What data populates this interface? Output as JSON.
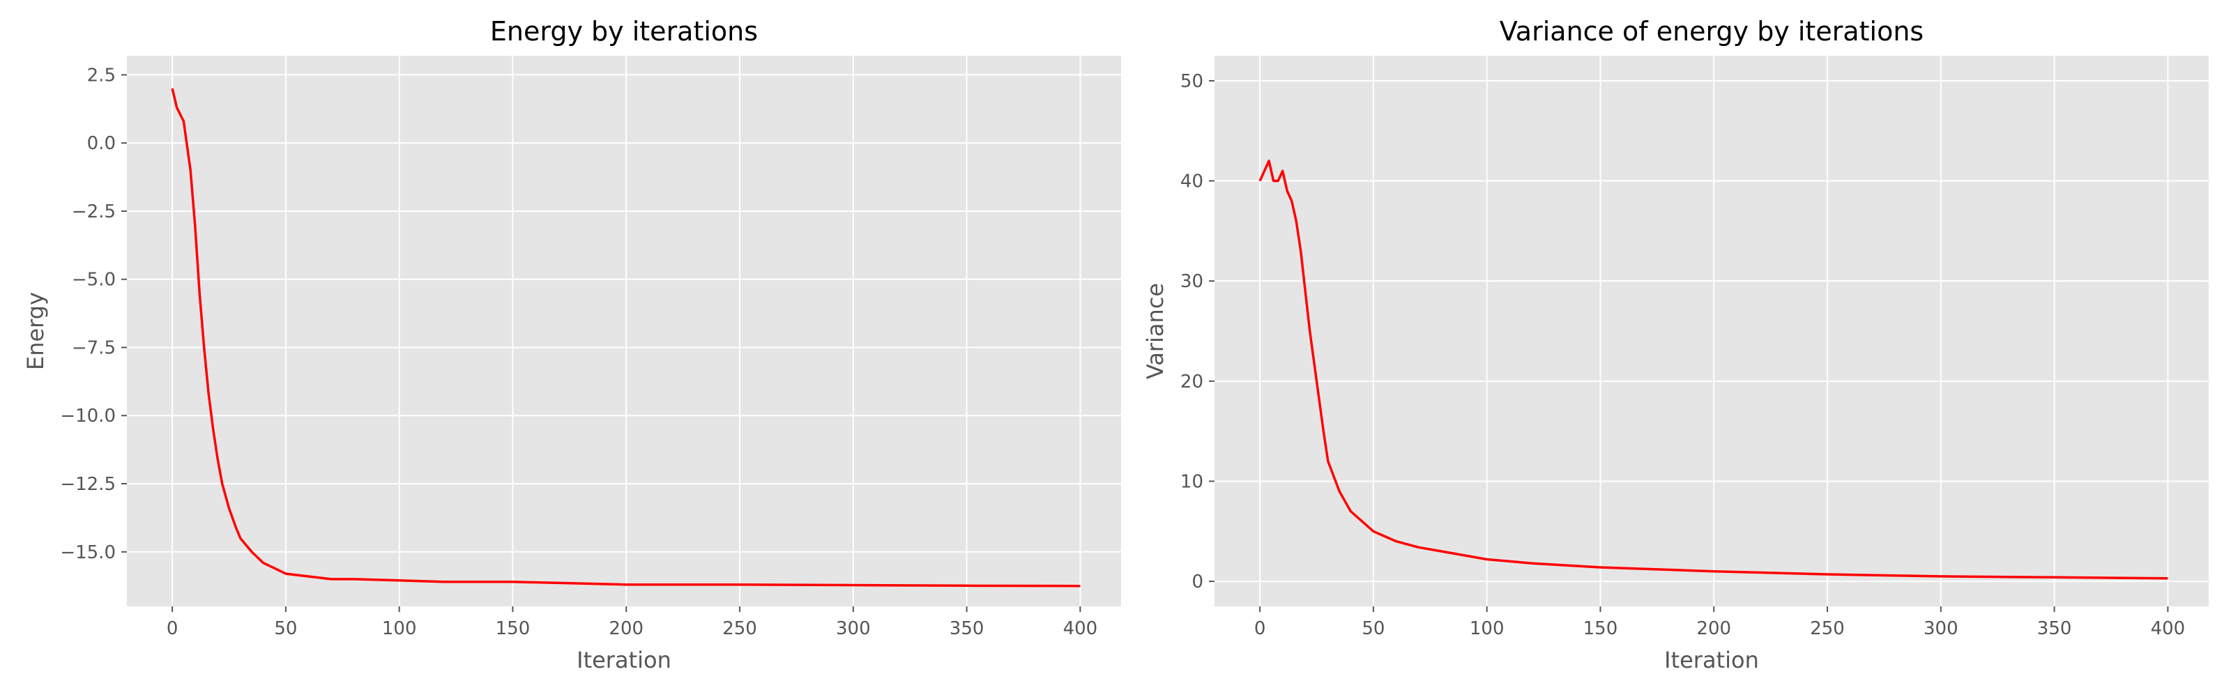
{
  "chart_data": [
    {
      "type": "line",
      "title": "Energy by iterations",
      "xlabel": "Iteration",
      "ylabel": "Energy",
      "xlim": [
        -20,
        418
      ],
      "ylim": [
        -17.0,
        3.2
      ],
      "xticks": [
        0,
        50,
        100,
        150,
        200,
        250,
        300,
        350,
        400
      ],
      "yticks": [
        2.5,
        0.0,
        -2.5,
        -5.0,
        -7.5,
        -10.0,
        -12.5,
        -15.0
      ],
      "ytick_labels": [
        "2.5",
        "0.0",
        "−2.5",
        "−5.0",
        "−7.5",
        "−10.0",
        "−12.5",
        "−15.0"
      ],
      "grid": true,
      "line_color": "#ff0000",
      "series": [
        {
          "x": [
            0,
            2,
            5,
            8,
            10,
            12,
            14,
            16,
            18,
            20,
            22,
            25,
            28,
            30,
            35,
            40,
            45,
            50,
            60,
            70,
            80,
            100,
            120,
            150,
            200,
            250,
            300,
            350,
            400
          ],
          "y": [
            2.0,
            1.3,
            0.8,
            -1.0,
            -3.0,
            -5.5,
            -7.5,
            -9.2,
            -10.5,
            -11.6,
            -12.5,
            -13.4,
            -14.1,
            -14.5,
            -15.0,
            -15.4,
            -15.6,
            -15.8,
            -15.9,
            -16.0,
            -16.0,
            -16.05,
            -16.1,
            -16.1,
            -16.2,
            -16.2,
            -16.22,
            -16.24,
            -16.25
          ]
        }
      ]
    },
    {
      "type": "line",
      "title": "Variance of energy by iterations",
      "xlabel": "Iteration",
      "ylabel": "Variance",
      "xlim": [
        -20,
        418
      ],
      "ylim": [
        -2.5,
        52.5
      ],
      "xticks": [
        0,
        50,
        100,
        150,
        200,
        250,
        300,
        350,
        400
      ],
      "yticks": [
        0,
        10,
        20,
        30,
        40,
        50
      ],
      "ytick_labels": [
        "0",
        "10",
        "20",
        "30",
        "40",
        "50"
      ],
      "grid": true,
      "line_color": "#ff0000",
      "series": [
        {
          "x": [
            0,
            2,
            4,
            6,
            8,
            10,
            12,
            14,
            16,
            18,
            20,
            22,
            25,
            28,
            30,
            35,
            40,
            45,
            50,
            60,
            70,
            80,
            100,
            120,
            150,
            200,
            250,
            300,
            350,
            400
          ],
          "y": [
            40,
            41,
            42,
            40,
            40,
            41,
            39,
            38,
            36,
            33,
            29,
            25,
            20,
            15,
            12,
            9,
            7,
            6,
            5,
            4,
            3.4,
            3.0,
            2.2,
            1.8,
            1.4,
            1.0,
            0.7,
            0.5,
            0.4,
            0.3
          ]
        }
      ]
    }
  ]
}
